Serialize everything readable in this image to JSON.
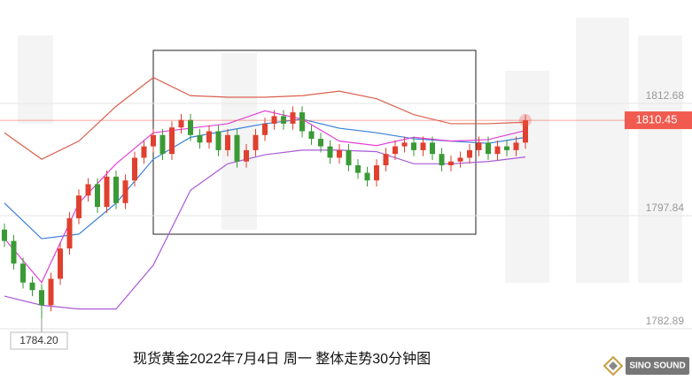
{
  "chart_data": {
    "type": "candlestick",
    "title": "现货黄金2022年7月4日 周一  整体走势30分钟图",
    "brand": "SINO SOUND",
    "ylim": [
      1775.06,
      1826.35
    ],
    "yticks": [
      1812.68,
      1797.84,
      1782.89
    ],
    "grid": true,
    "up_color": "#e0402f",
    "down_color": "#3a9a35",
    "last_price": 1810.45,
    "last_price_color": "#f05a4f",
    "low_marker": {
      "index": 4,
      "value": 1784.2,
      "label": "1784.20"
    },
    "open": [
      1796.0,
      1794.5,
      1791.5,
      1789.0,
      1788.0,
      1786.0,
      1789.5,
      1793.5,
      1797.5,
      1800.5,
      1802.0,
      1799.0,
      1803.0,
      1799.5,
      1802.5,
      1805.5,
      1807.0,
      1808.5,
      1806.0,
      1809.5,
      1810.5,
      1808.5,
      1807.5,
      1809.0,
      1806.5,
      1808.5,
      1805.0,
      1806.5,
      1808.5,
      1810.0,
      1811.0,
      1810.0,
      1811.5,
      1809.0,
      1808.0,
      1807.0,
      1805.5,
      1806.5,
      1804.5,
      1803.5,
      1802.5,
      1804.5,
      1806.0,
      1807.0,
      1807.5,
      1806.5,
      1807.5,
      1806.0,
      1804.5,
      1805.0,
      1805.5,
      1806.5,
      1807.5,
      1806.0,
      1807.0,
      1806.5,
      1807.5
    ],
    "high": [
      1796.8,
      1795.3,
      1792.3,
      1789.8,
      1788.8,
      1790.3,
      1794.3,
      1798.3,
      1801.3,
      1802.8,
      1802.8,
      1803.8,
      1803.8,
      1803.3,
      1806.3,
      1807.8,
      1809.3,
      1809.3,
      1810.3,
      1811.3,
      1811.3,
      1809.3,
      1809.8,
      1809.8,
      1809.3,
      1809.3,
      1807.3,
      1809.3,
      1810.8,
      1811.8,
      1811.8,
      1812.3,
      1812.3,
      1809.8,
      1808.8,
      1807.8,
      1807.3,
      1807.3,
      1805.3,
      1804.3,
      1805.3,
      1806.8,
      1807.8,
      1808.3,
      1808.3,
      1808.3,
      1808.3,
      1806.8,
      1805.8,
      1806.3,
      1807.3,
      1808.3,
      1808.3,
      1807.8,
      1807.8,
      1808.3,
      1811.2
    ],
    "low": [
      1793.7,
      1790.7,
      1788.2,
      1787.2,
      1784.2,
      1785.2,
      1788.7,
      1792.7,
      1796.7,
      1799.7,
      1798.2,
      1798.2,
      1798.7,
      1798.7,
      1801.7,
      1804.7,
      1806.2,
      1805.2,
      1805.2,
      1808.7,
      1807.7,
      1806.7,
      1806.7,
      1805.7,
      1805.7,
      1804.2,
      1804.2,
      1805.7,
      1807.7,
      1809.2,
      1809.2,
      1809.2,
      1808.2,
      1807.2,
      1806.2,
      1804.7,
      1804.7,
      1803.7,
      1802.7,
      1801.7,
      1801.7,
      1803.7,
      1805.2,
      1806.2,
      1805.7,
      1805.7,
      1805.2,
      1803.7,
      1803.7,
      1804.2,
      1804.7,
      1805.7,
      1805.2,
      1805.2,
      1805.7,
      1805.7,
      1806.7
    ],
    "close": [
      1794.5,
      1791.5,
      1789.0,
      1788.0,
      1786.0,
      1789.5,
      1793.5,
      1797.5,
      1800.5,
      1802.0,
      1799.0,
      1803.0,
      1799.5,
      1802.5,
      1805.5,
      1807.0,
      1808.5,
      1806.0,
      1809.5,
      1810.5,
      1808.5,
      1807.5,
      1809.0,
      1806.5,
      1808.5,
      1805.0,
      1806.5,
      1808.5,
      1810.0,
      1811.0,
      1810.0,
      1811.5,
      1809.0,
      1808.0,
      1807.0,
      1805.5,
      1806.5,
      1804.5,
      1803.5,
      1802.5,
      1804.5,
      1806.0,
      1807.0,
      1807.5,
      1806.5,
      1807.5,
      1806.0,
      1804.5,
      1805.0,
      1805.5,
      1806.5,
      1807.5,
      1806.0,
      1807.0,
      1806.5,
      1807.5,
      1810.45
    ],
    "line_index": [
      0,
      4,
      8,
      12,
      16,
      20,
      24,
      28,
      32,
      36,
      40,
      44,
      48,
      52,
      56
    ],
    "upper_band": {
      "color": "#d9604c",
      "values": [
        1808.8,
        1805.3,
        1807.7,
        1812.3,
        1816.1,
        1813.7,
        1813.5,
        1813.5,
        1813.7,
        1814.3,
        1813.3,
        1811.2,
        1810.0,
        1810.0,
        1810.2
      ]
    },
    "lower_band": {
      "color": "#a95ad6",
      "values": [
        1787.2,
        1786.0,
        1785.5,
        1785.5,
        1791.3,
        1801.2,
        1804.7,
        1805.9,
        1806.5,
        1806.5,
        1806.3,
        1804.7,
        1804.7,
        1805.0,
        1805.6
      ]
    },
    "ma_mid": {
      "color": "#3a7fd8",
      "values": [
        1799.5,
        1794.8,
        1795.4,
        1799.5,
        1805.3,
        1808.2,
        1809.1,
        1810.0,
        1810.6,
        1809.4,
        1808.8,
        1808.0,
        1807.7,
        1807.4,
        1808.2
      ]
    },
    "ma_short": {
      "color": "#e040d8",
      "values": [
        1794.8,
        1789.0,
        1799.5,
        1804.7,
        1808.8,
        1809.4,
        1810.0,
        1811.7,
        1810.6,
        1807.7,
        1807.1,
        1808.2,
        1807.7,
        1807.9,
        1809.1
      ]
    }
  }
}
